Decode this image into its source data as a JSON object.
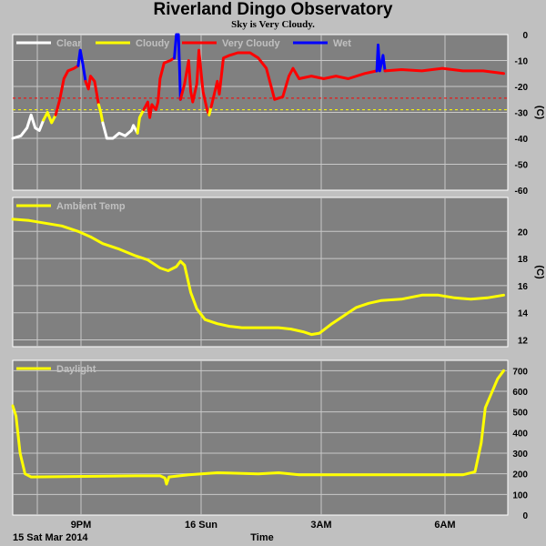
{
  "title": "Riverland Dingo Observatory",
  "subtitle": "Sky is Very Cloudy.",
  "footer": {
    "date": "15 Sat Mar 2014",
    "xlabel": "Time"
  },
  "x_ticks": [
    "9PM",
    "16 Sun",
    "3AM",
    "6AM"
  ],
  "chart_data": [
    {
      "type": "line",
      "name": "sky",
      "ylabel": "(C)",
      "ylim": [
        -60,
        0
      ],
      "yticks": [
        0,
        -10,
        -20,
        -30,
        -40,
        -50,
        -60
      ],
      "grid": true,
      "legend_position": "top-left",
      "x_unit": "hours since start of record",
      "x_range": [
        0,
        12.1
      ],
      "thresholds": [
        {
          "y": -24.5,
          "color": "#ff0000"
        },
        {
          "y": -29.0,
          "color": "#ffff00"
        }
      ],
      "series": [
        {
          "name": "Clear",
          "color": "#ffffff",
          "points": [
            [
              0,
              -40
            ],
            [
              0.2,
              -39
            ],
            [
              0.35,
              -36
            ],
            [
              0.45,
              -31
            ],
            [
              0.55,
              -36
            ],
            [
              0.65,
              -37
            ],
            [
              0.75,
              -33
            ]
          ]
        },
        {
          "name": "Cloudy",
          "color": "#ffff00",
          "points": [
            [
              0.75,
              -33
            ],
            [
              0.85,
              -30
            ],
            [
              0.95,
              -34
            ],
            [
              1.05,
              -31
            ]
          ]
        },
        {
          "name": "Very Cloudy",
          "color": "#ff0000",
          "points": [
            [
              1.05,
              -31
            ],
            [
              1.15,
              -25
            ],
            [
              1.25,
              -17
            ],
            [
              1.35,
              -14
            ],
            [
              1.5,
              -13
            ],
            [
              1.6,
              -12
            ]
          ]
        },
        {
          "name": "Wet",
          "color": "#0000ff",
          "points": [
            [
              1.6,
              -12
            ],
            [
              1.65,
              -6
            ],
            [
              1.72,
              -12
            ],
            [
              1.78,
              -18
            ]
          ]
        },
        {
          "name": "Very Cloudy",
          "color": "#ff0000",
          "points": [
            [
              1.78,
              -18
            ],
            [
              1.85,
              -21
            ],
            [
              1.9,
              -16
            ],
            [
              2.0,
              -18
            ],
            [
              2.1,
              -27
            ]
          ]
        },
        {
          "name": "Cloudy",
          "color": "#ffff00",
          "points": [
            [
              2.1,
              -27
            ],
            [
              2.15,
              -30
            ],
            [
              2.2,
              -34
            ]
          ]
        },
        {
          "name": "Clear",
          "color": "#ffffff",
          "points": [
            [
              2.2,
              -34
            ],
            [
              2.3,
              -40
            ],
            [
              2.45,
              -40
            ],
            [
              2.6,
              -38
            ],
            [
              2.75,
              -39
            ],
            [
              2.9,
              -37
            ],
            [
              2.95,
              -35
            ],
            [
              3.05,
              -38
            ]
          ]
        },
        {
          "name": "Cloudy",
          "color": "#ffff00",
          "points": [
            [
              3.05,
              -38
            ],
            [
              3.1,
              -32
            ],
            [
              3.2,
              -29
            ]
          ]
        },
        {
          "name": "Very Cloudy",
          "color": "#ff0000",
          "points": [
            [
              3.2,
              -29
            ],
            [
              3.3,
              -26
            ],
            [
              3.35,
              -32
            ],
            [
              3.4,
              -27
            ],
            [
              3.5,
              -29
            ],
            [
              3.55,
              -26
            ],
            [
              3.6,
              -17
            ],
            [
              3.7,
              -11
            ],
            [
              3.85,
              -10
            ],
            [
              3.95,
              -9
            ]
          ]
        },
        {
          "name": "Wet",
          "color": "#0000ff",
          "points": [
            [
              3.95,
              -9
            ],
            [
              4.0,
              0
            ],
            [
              4.05,
              0
            ],
            [
              4.08,
              -14
            ],
            [
              4.1,
              -25
            ]
          ]
        },
        {
          "name": "Very Cloudy",
          "color": "#ff0000",
          "points": [
            [
              4.1,
              -25
            ],
            [
              4.2,
              -19
            ],
            [
              4.3,
              -10
            ],
            [
              4.35,
              -22
            ],
            [
              4.4,
              -26
            ],
            [
              4.5,
              -19
            ],
            [
              4.55,
              -6
            ],
            [
              4.6,
              -14
            ],
            [
              4.65,
              -22
            ],
            [
              4.75,
              -29
            ],
            [
              4.8,
              -31
            ]
          ]
        },
        {
          "name": "Cloudy",
          "color": "#ffff00",
          "points": [
            [
              4.8,
              -31
            ],
            [
              4.85,
              -28
            ]
          ]
        },
        {
          "name": "Very Cloudy",
          "color": "#ff0000",
          "points": [
            [
              4.85,
              -28
            ],
            [
              5.0,
              -18
            ],
            [
              5.05,
              -23
            ],
            [
              5.15,
              -9
            ],
            [
              5.3,
              -8
            ],
            [
              5.5,
              -7
            ],
            [
              5.8,
              -7
            ],
            [
              6.0,
              -9
            ],
            [
              6.2,
              -13
            ],
            [
              6.3,
              -19
            ],
            [
              6.4,
              -25
            ],
            [
              6.6,
              -24
            ],
            [
              6.75,
              -16
            ],
            [
              6.85,
              -13
            ],
            [
              7.0,
              -17
            ],
            [
              7.3,
              -16
            ],
            [
              7.6,
              -17
            ],
            [
              7.9,
              -16
            ],
            [
              8.2,
              -17
            ],
            [
              8.6,
              -15
            ],
            [
              8.9,
              -14
            ]
          ]
        },
        {
          "name": "Wet",
          "color": "#0000ff",
          "points": [
            [
              8.9,
              -14
            ],
            [
              8.93,
              -4
            ],
            [
              8.97,
              -14
            ],
            [
              9.05,
              -8
            ],
            [
              9.1,
              -14
            ]
          ]
        },
        {
          "name": "Very Cloudy",
          "color": "#ff0000",
          "points": [
            [
              9.1,
              -14
            ],
            [
              9.5,
              -13.5
            ],
            [
              10,
              -14
            ],
            [
              10.5,
              -13
            ],
            [
              11,
              -14
            ],
            [
              11.5,
              -14
            ],
            [
              12.0,
              -15
            ]
          ]
        }
      ],
      "legend": [
        {
          "name": "Clear",
          "color": "#ffffff"
        },
        {
          "name": "Cloudy",
          "color": "#ffff00"
        },
        {
          "name": "Very Cloudy",
          "color": "#ff0000"
        },
        {
          "name": "Wet",
          "color": "#0000ff"
        }
      ]
    },
    {
      "type": "line",
      "name": "ambient",
      "ylabel": "(C)",
      "ylim": [
        11.5,
        22.5
      ],
      "yticks": [
        20,
        18,
        16,
        14,
        12
      ],
      "grid": true,
      "legend_position": "top-left",
      "series": [
        {
          "name": "Ambient Temp",
          "color": "#ffff00",
          "points": [
            [
              0,
              20.9
            ],
            [
              0.4,
              20.8
            ],
            [
              0.8,
              20.6
            ],
            [
              1.2,
              20.4
            ],
            [
              1.6,
              20.0
            ],
            [
              1.9,
              19.6
            ],
            [
              2.2,
              19.1
            ],
            [
              2.6,
              18.7
            ],
            [
              3.0,
              18.2
            ],
            [
              3.3,
              17.9
            ],
            [
              3.6,
              17.3
            ],
            [
              3.8,
              17.1
            ],
            [
              4.0,
              17.4
            ],
            [
              4.1,
              17.8
            ],
            [
              4.2,
              17.5
            ],
            [
              4.35,
              15.5
            ],
            [
              4.5,
              14.3
            ],
            [
              4.7,
              13.5
            ],
            [
              5.0,
              13.2
            ],
            [
              5.3,
              13.0
            ],
            [
              5.6,
              12.9
            ],
            [
              6.0,
              12.9
            ],
            [
              6.5,
              12.9
            ],
            [
              6.8,
              12.8
            ],
            [
              7.1,
              12.6
            ],
            [
              7.3,
              12.4
            ],
            [
              7.5,
              12.5
            ],
            [
              7.8,
              13.2
            ],
            [
              8.1,
              13.8
            ],
            [
              8.4,
              14.4
            ],
            [
              8.7,
              14.7
            ],
            [
              9.0,
              14.9
            ],
            [
              9.5,
              15.0
            ],
            [
              10,
              15.3
            ],
            [
              10.4,
              15.3
            ],
            [
              10.8,
              15.1
            ],
            [
              11.2,
              15.0
            ],
            [
              11.6,
              15.1
            ],
            [
              12.0,
              15.3
            ]
          ]
        }
      ]
    },
    {
      "type": "line",
      "name": "daylight",
      "ylim": [
        0,
        750
      ],
      "yticks": [
        700,
        600,
        500,
        400,
        300,
        200,
        100,
        0
      ],
      "grid": true,
      "legend_position": "top-left",
      "series": [
        {
          "name": "Daylight",
          "color": "#ffff00",
          "points": [
            [
              0,
              530
            ],
            [
              0.08,
              480
            ],
            [
              0.18,
              300
            ],
            [
              0.3,
              200
            ],
            [
              0.45,
              185
            ],
            [
              1.5,
              187
            ],
            [
              3.0,
              190
            ],
            [
              3.6,
              190
            ],
            [
              3.72,
              180
            ],
            [
              3.76,
              150
            ],
            [
              3.82,
              185
            ],
            [
              4.3,
              195
            ],
            [
              5.0,
              205
            ],
            [
              6.0,
              200
            ],
            [
              6.5,
              205
            ],
            [
              7.0,
              195
            ],
            [
              8.0,
              195
            ],
            [
              9.0,
              195
            ],
            [
              10.0,
              195
            ],
            [
              11.0,
              195
            ],
            [
              11.3,
              210
            ],
            [
              11.45,
              350
            ],
            [
              11.55,
              520
            ],
            [
              11.7,
              590
            ],
            [
              11.85,
              660
            ],
            [
              12.0,
              700
            ]
          ]
        }
      ]
    }
  ]
}
